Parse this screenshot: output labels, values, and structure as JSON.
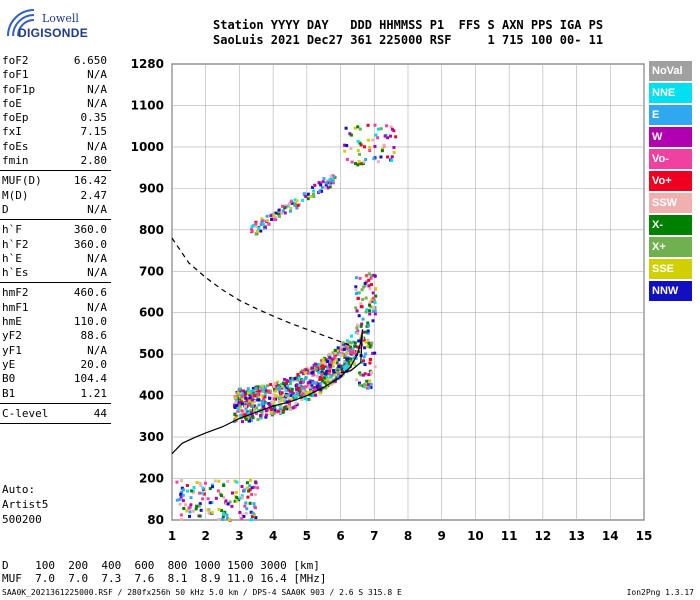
{
  "logo": {
    "line1": "Lowell",
    "line2": "DIGISONDE"
  },
  "header": {
    "line1": "Station YYYY DAY   DDD HHMMSS P1  FFS S AXN PPS IGA PS",
    "line2": "SaoLuis 2021 Dec27 361 225000 RSF     1 715 100 00- 11"
  },
  "params": [
    {
      "name": "foF2",
      "value": "6.650"
    },
    {
      "name": "foF1",
      "value": "N/A"
    },
    {
      "name": "foF1p",
      "value": "N/A"
    },
    {
      "name": "foE",
      "value": "N/A"
    },
    {
      "name": "foEp",
      "value": "0.35"
    },
    {
      "name": "fxI",
      "value": "7.15"
    },
    {
      "name": "foEs",
      "value": "N/A"
    },
    {
      "name": "fmin",
      "value": "2.80"
    },
    {
      "sep": true
    },
    {
      "name": "MUF(D)",
      "value": "16.42"
    },
    {
      "name": "M(D)",
      "value": "2.47"
    },
    {
      "name": "D",
      "value": "N/A"
    },
    {
      "sep": true
    },
    {
      "name": "h`F",
      "value": "360.0"
    },
    {
      "name": "h`F2",
      "value": "360.0"
    },
    {
      "name": "h`E",
      "value": "N/A"
    },
    {
      "name": "h`Es",
      "value": "N/A"
    },
    {
      "sep": true
    },
    {
      "name": "hmF2",
      "value": "460.6"
    },
    {
      "name": "hmF1",
      "value": "N/A"
    },
    {
      "name": "hmE",
      "value": "110.0"
    },
    {
      "name": "yF2",
      "value": "88.6"
    },
    {
      "name": "yF1",
      "value": "N/A"
    },
    {
      "name": "yE",
      "value": "20.0"
    },
    {
      "name": "B0",
      "value": "104.4"
    },
    {
      "name": "B1",
      "value": "1.21"
    },
    {
      "sep": true
    },
    {
      "name": "C-level",
      "value": "44"
    },
    {
      "sep": true
    }
  ],
  "auto": {
    "line1": "Auto:",
    "line2": "Artist5",
    "line3": "500200"
  },
  "legend": [
    {
      "label": "NoVal",
      "color": "#a0a0a0"
    },
    {
      "label": "NNE",
      "color": "#00e0f0"
    },
    {
      "label": "E",
      "color": "#30a8f0"
    },
    {
      "label": "W",
      "color": "#b000b0"
    },
    {
      "label": "Vo-",
      "color": "#f040a0"
    },
    {
      "label": "Vo+",
      "color": "#f00020"
    },
    {
      "label": "SSW",
      "color": "#f0b0b0"
    },
    {
      "label": "X-",
      "color": "#008000"
    },
    {
      "label": "X+",
      "color": "#70b050"
    },
    {
      "label": "SSE",
      "color": "#d0d000"
    },
    {
      "label": "NNW",
      "color": "#1010c0"
    }
  ],
  "bottom": {
    "line1": "D    100  200  400  600  800 1000 1500 3000 [km]",
    "line2": "MUF  7.0  7.0  7.3  7.6  8.1  8.9 11.0 16.4 [MHz]"
  },
  "footer": {
    "left": "SAA0K_2021361225000.RSF / 280fx256h 50 kHz 5.0 km / DPS-4 SAA0K 903 / 2.6 S 315.8 E",
    "right": "Ion2Png 1.3.17"
  },
  "chart_data": {
    "type": "scatter",
    "title": "",
    "xlabel": "",
    "ylabel": "",
    "xlim": [
      1,
      15
    ],
    "ylim": [
      80,
      1280
    ],
    "x_ticks": [
      "1",
      "2",
      "3",
      "4",
      "5",
      "6",
      "7",
      "8",
      "9",
      "10",
      "11",
      "12",
      "13",
      "14",
      "15"
    ],
    "y_ticks": [
      "80",
      "200",
      "300",
      "400",
      "500",
      "600",
      "700",
      "800",
      "900",
      "1000",
      "1100",
      "1280"
    ],
    "y_tick_values": [
      80,
      200,
      300,
      400,
      500,
      600,
      700,
      800,
      900,
      1000,
      1100,
      1280
    ],
    "grid": true,
    "series": [
      {
        "name": "",
        "kind": "solid-line",
        "color": "#000000",
        "x": [
          1.0,
          1.3,
          1.7,
          2.0,
          2.5,
          3.0,
          3.5,
          4.0,
          4.5,
          5.0,
          5.5,
          6.0,
          6.3,
          6.5,
          6.6,
          6.65,
          6.6,
          6.3,
          6.0
        ],
        "y": [
          260,
          285,
          300,
          310,
          325,
          345,
          360,
          375,
          385,
          400,
          420,
          445,
          470,
          500,
          530,
          560,
          480,
          460,
          455
        ]
      },
      {
        "name": "",
        "kind": "dashed-line",
        "color": "#000000",
        "x": [
          1.0,
          1.5,
          2.0,
          2.5,
          3.0,
          3.5,
          4.0,
          4.5,
          5.0,
          5.5,
          6.0,
          6.3
        ],
        "y": [
          780,
          720,
          685,
          655,
          630,
          610,
          592,
          575,
          560,
          545,
          530,
          520
        ]
      }
    ],
    "echo_regions": [
      {
        "x": [
          2.8,
          7.0
        ],
        "y": [
          370,
          700
        ]
      },
      {
        "x": [
          3.3,
          5.8
        ],
        "y": [
          800,
          940
        ]
      },
      {
        "x": [
          6.0,
          7.6
        ],
        "y": [
          960,
          1060
        ]
      },
      {
        "x": [
          1.1,
          3.5
        ],
        "y": [
          80,
          200
        ]
      }
    ]
  }
}
